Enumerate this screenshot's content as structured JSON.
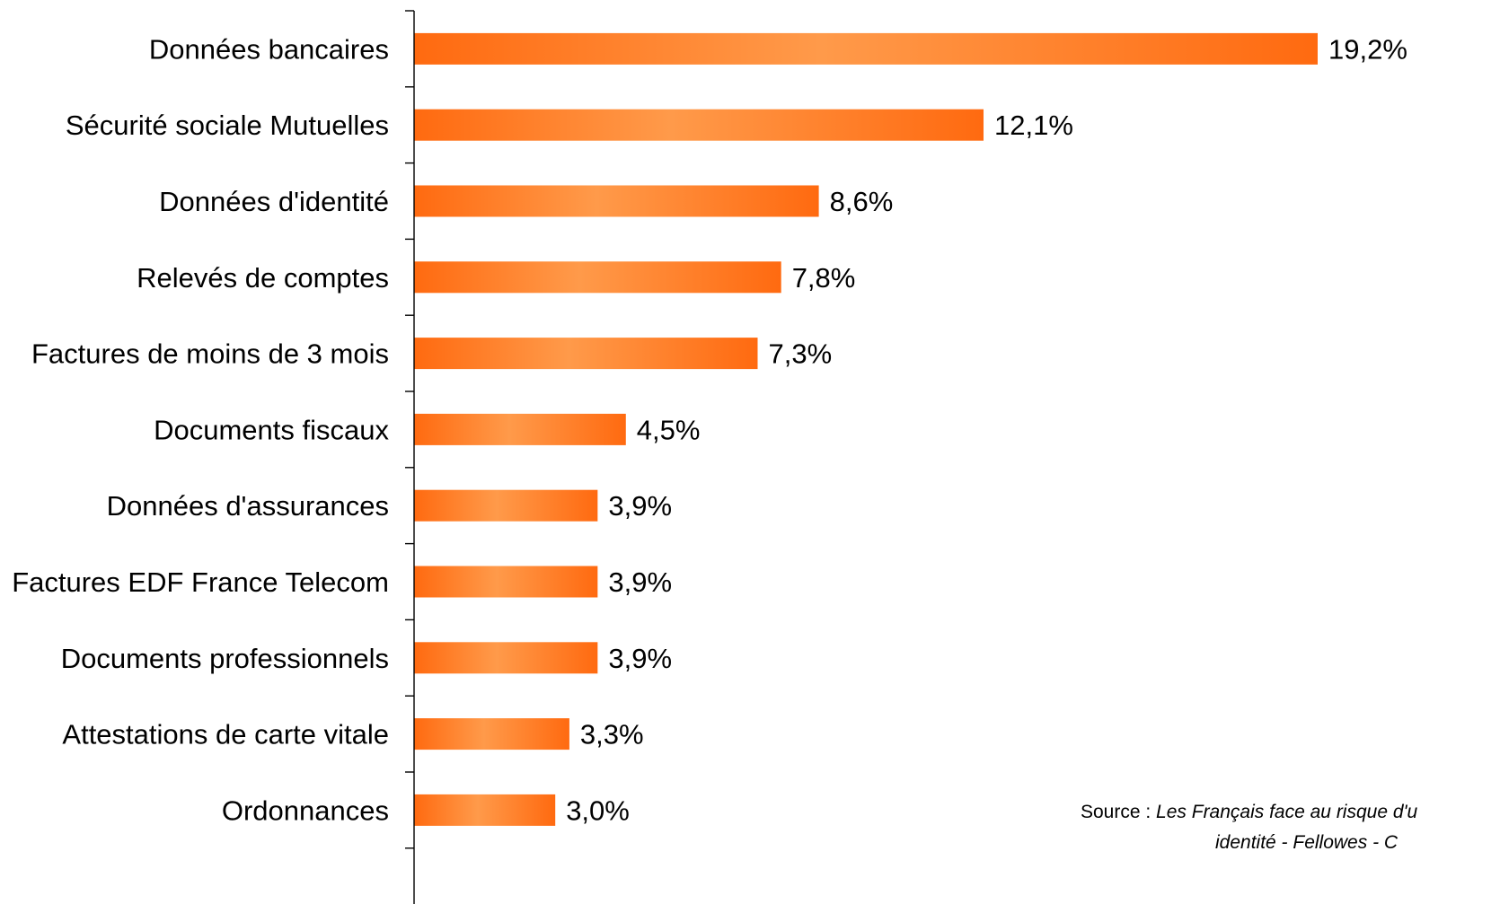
{
  "chart_data": {
    "type": "bar",
    "orientation": "horizontal",
    "categories": [
      "Données bancaires",
      "Sécurité sociale Mutuelles",
      "Données d'identité",
      "Relevés de comptes",
      "Factures de moins de 3 mois",
      "Documents fiscaux",
      "Données d'assurances",
      "Factures EDF France Telecom",
      "Documents professionnels",
      "Attestations de carte vitale",
      "Ordonnances"
    ],
    "values": [
      19.2,
      12.1,
      8.6,
      7.8,
      7.3,
      4.5,
      3.9,
      3.9,
      3.9,
      3.3,
      3.0
    ],
    "value_labels": [
      "19,2%",
      "12,1%",
      "8,6%",
      "7,8%",
      "7,3%",
      "4,5%",
      "3,9%",
      "3,9%",
      "3,9%",
      "3,3%",
      "3,0%"
    ],
    "xlim": [
      0,
      19.2
    ],
    "grid": false,
    "colors": {
      "bar_dark": "#ff6a10",
      "bar_light": "#ff9a4a"
    }
  },
  "source": {
    "prefix": "Source : ",
    "title_line1": "Les Français  face au risque d'u",
    "title_line2": "identité - Fellowes - C"
  }
}
